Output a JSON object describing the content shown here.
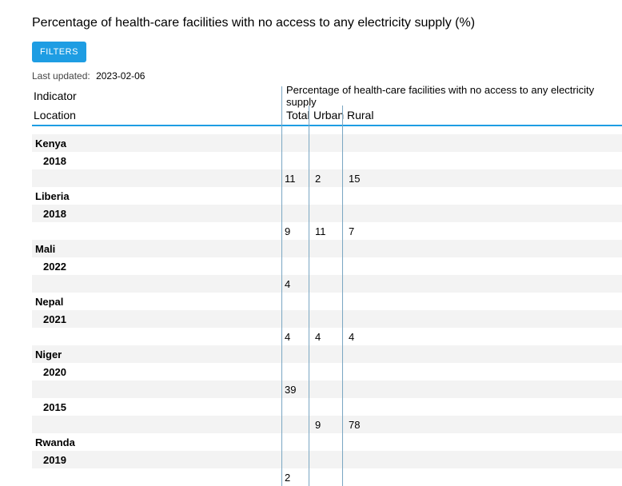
{
  "title": "Percentage of health-care facilities with no access to any electricity supply (%)",
  "filters_label": "FILTERS",
  "last_updated_label": "Last updated:",
  "last_updated_date": "2023-02-06",
  "header": {
    "indicator_label": "Indicator",
    "indicator_value": "Percentage of health-care facilities with no access to any electricity supply",
    "location_label": "Location",
    "col_total": "Total",
    "col_urban": "Urban",
    "col_rural": "Rural"
  },
  "rows": [
    {
      "type": "gap"
    },
    {
      "type": "country",
      "label": "Kenya",
      "stripe": true
    },
    {
      "type": "year",
      "label": "2018",
      "stripe": false
    },
    {
      "type": "data",
      "total": "11",
      "urban": "2",
      "rural": "15",
      "stripe": true
    },
    {
      "type": "country",
      "label": "Liberia",
      "stripe": false
    },
    {
      "type": "year",
      "label": "2018",
      "stripe": true
    },
    {
      "type": "data",
      "total": "9",
      "urban": "11",
      "rural": "7",
      "stripe": false
    },
    {
      "type": "country",
      "label": "Mali",
      "stripe": true
    },
    {
      "type": "year",
      "label": "2022",
      "stripe": false
    },
    {
      "type": "data",
      "total": "4",
      "urban": "",
      "rural": "",
      "stripe": true
    },
    {
      "type": "country",
      "label": "Nepal",
      "stripe": false
    },
    {
      "type": "year",
      "label": "2021",
      "stripe": true
    },
    {
      "type": "data",
      "total": "4",
      "urban": "4",
      "rural": "4",
      "stripe": false
    },
    {
      "type": "country",
      "label": "Niger",
      "stripe": true
    },
    {
      "type": "year",
      "label": "2020",
      "stripe": false
    },
    {
      "type": "data",
      "total": "39",
      "urban": "",
      "rural": "",
      "stripe": true
    },
    {
      "type": "year",
      "label": "2015",
      "stripe": false
    },
    {
      "type": "data",
      "total": "",
      "urban": "9",
      "rural": "78",
      "stripe": true
    },
    {
      "type": "country",
      "label": "Rwanda",
      "stripe": false
    },
    {
      "type": "year",
      "label": "2019",
      "stripe": true
    },
    {
      "type": "data",
      "total": "2",
      "urban": "",
      "rural": "",
      "stripe": false
    }
  ],
  "colors": {
    "button_bg": "#1e9de3",
    "header_divider": "#1e9de3",
    "vline": "#7aa6c2",
    "stripe": "#f3f3f3"
  }
}
